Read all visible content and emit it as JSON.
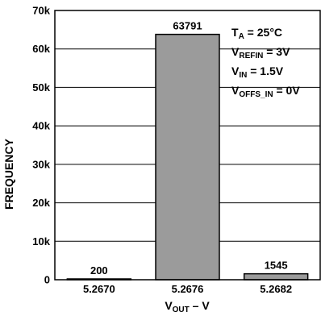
{
  "chart_data": {
    "type": "bar",
    "categories": [
      "5.2670",
      "5.2676",
      "5.2682"
    ],
    "values": [
      200,
      63791,
      1545
    ],
    "data_labels": [
      "200",
      "63791",
      "1545"
    ],
    "ylim": [
      0,
      70000
    ],
    "y_ticks": [
      0,
      10000,
      20000,
      30000,
      40000,
      50000,
      60000,
      70000
    ],
    "y_tick_labels": [
      "0",
      "10k",
      "20k",
      "30k",
      "40k",
      "50k",
      "60k",
      "70k"
    ],
    "xlabel": {
      "main": "V",
      "sub": "OUT",
      "rest": " – V"
    },
    "ylabel": "FREQUENCY",
    "grid": true,
    "annotations": [
      {
        "main": "T",
        "sub": "A",
        "rest": " = 25°C"
      },
      {
        "main": "V",
        "sub": "REFIN",
        "rest": " = 3V"
      },
      {
        "main": "V",
        "sub": "IN",
        "rest": " = 1.5V"
      },
      {
        "main": "V",
        "sub": "OFFS_IN",
        "rest": " = 0V"
      }
    ],
    "colors": {
      "bar_fill": "#9b9b9b",
      "bar_stroke": "#000000",
      "grid": "#000000",
      "frame": "#000000"
    }
  }
}
